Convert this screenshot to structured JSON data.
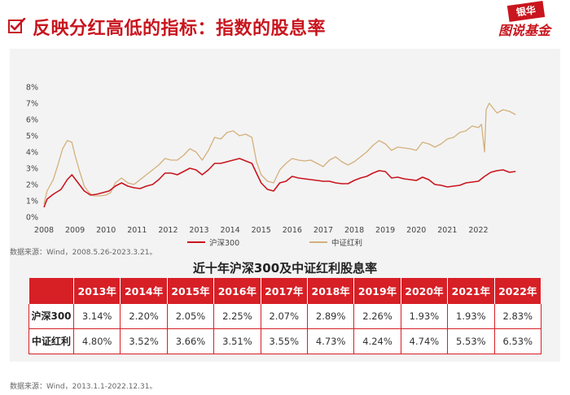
{
  "header": {
    "title": "反映分红高低的指标：指数的股息率",
    "logo_top": "银华",
    "logo_bottom": "图说基金"
  },
  "colors": {
    "red": "#c9151e",
    "tan": "#d4b07c",
    "table_header": "#d71f26"
  },
  "chart_data": {
    "type": "line",
    "x_ticks": [
      "2008",
      "2009",
      "2010",
      "2011",
      "2012",
      "2013",
      "2014",
      "2015",
      "2016",
      "2017",
      "2018",
      "2019",
      "2020",
      "2021",
      "2022"
    ],
    "y_ticks": [
      "0%",
      "1%",
      "2%",
      "3%",
      "4%",
      "5%",
      "6%",
      "7%",
      "8%"
    ],
    "ylim": [
      0,
      8
    ],
    "xlim": [
      2008.0,
      2023.3
    ],
    "grid": false,
    "legend_position": "bottom",
    "series": [
      {
        "name": "沪深300",
        "color": "#c9151e",
        "points": [
          [
            2008.0,
            0.6
          ],
          [
            2008.1,
            1.1
          ],
          [
            2008.3,
            1.4
          ],
          [
            2008.55,
            1.7
          ],
          [
            2008.75,
            2.3
          ],
          [
            2008.9,
            2.6
          ],
          [
            2009.1,
            2.1
          ],
          [
            2009.3,
            1.6
          ],
          [
            2009.5,
            1.35
          ],
          [
            2009.7,
            1.4
          ],
          [
            2009.9,
            1.5
          ],
          [
            2010.1,
            1.6
          ],
          [
            2010.3,
            1.9
          ],
          [
            2010.5,
            2.1
          ],
          [
            2010.7,
            1.9
          ],
          [
            2010.9,
            1.8
          ],
          [
            2011.1,
            1.75
          ],
          [
            2011.3,
            1.9
          ],
          [
            2011.5,
            2.0
          ],
          [
            2011.7,
            2.3
          ],
          [
            2011.9,
            2.7
          ],
          [
            2012.1,
            2.7
          ],
          [
            2012.3,
            2.6
          ],
          [
            2012.5,
            2.8
          ],
          [
            2012.7,
            3.0
          ],
          [
            2012.9,
            2.9
          ],
          [
            2013.1,
            2.6
          ],
          [
            2013.3,
            2.9
          ],
          [
            2013.5,
            3.3
          ],
          [
            2013.7,
            3.3
          ],
          [
            2013.9,
            3.4
          ],
          [
            2014.1,
            3.5
          ],
          [
            2014.3,
            3.6
          ],
          [
            2014.5,
            3.45
          ],
          [
            2014.7,
            3.3
          ],
          [
            2014.85,
            2.7
          ],
          [
            2015.0,
            2.1
          ],
          [
            2015.2,
            1.7
          ],
          [
            2015.4,
            1.6
          ],
          [
            2015.6,
            2.1
          ],
          [
            2015.8,
            2.2
          ],
          [
            2016.0,
            2.5
          ],
          [
            2016.2,
            2.4
          ],
          [
            2016.4,
            2.35
          ],
          [
            2016.6,
            2.3
          ],
          [
            2016.8,
            2.25
          ],
          [
            2017.0,
            2.2
          ],
          [
            2017.2,
            2.2
          ],
          [
            2017.4,
            2.1
          ],
          [
            2017.6,
            2.05
          ],
          [
            2017.8,
            2.05
          ],
          [
            2018.0,
            2.25
          ],
          [
            2018.2,
            2.4
          ],
          [
            2018.4,
            2.5
          ],
          [
            2018.6,
            2.7
          ],
          [
            2018.8,
            2.85
          ],
          [
            2019.0,
            2.8
          ],
          [
            2019.2,
            2.4
          ],
          [
            2019.4,
            2.45
          ],
          [
            2019.6,
            2.35
          ],
          [
            2019.8,
            2.3
          ],
          [
            2020.0,
            2.25
          ],
          [
            2020.2,
            2.45
          ],
          [
            2020.4,
            2.3
          ],
          [
            2020.6,
            2.0
          ],
          [
            2020.8,
            1.95
          ],
          [
            2021.0,
            1.85
          ],
          [
            2021.2,
            1.9
          ],
          [
            2021.4,
            1.95
          ],
          [
            2021.6,
            2.1
          ],
          [
            2021.8,
            2.15
          ],
          [
            2022.0,
            2.2
          ],
          [
            2022.2,
            2.5
          ],
          [
            2022.4,
            2.75
          ],
          [
            2022.6,
            2.85
          ],
          [
            2022.8,
            2.9
          ],
          [
            2023.0,
            2.75
          ],
          [
            2023.2,
            2.8
          ]
        ]
      },
      {
        "name": "中证红利",
        "color": "#d4b07c",
        "points": [
          [
            2008.0,
            0.8
          ],
          [
            2008.1,
            1.6
          ],
          [
            2008.3,
            2.3
          ],
          [
            2008.45,
            3.2
          ],
          [
            2008.6,
            4.2
          ],
          [
            2008.75,
            4.7
          ],
          [
            2008.9,
            4.6
          ],
          [
            2009.0,
            3.8
          ],
          [
            2009.15,
            2.8
          ],
          [
            2009.3,
            1.9
          ],
          [
            2009.45,
            1.5
          ],
          [
            2009.6,
            1.3
          ],
          [
            2009.8,
            1.3
          ],
          [
            2010.0,
            1.35
          ],
          [
            2010.15,
            1.5
          ],
          [
            2010.3,
            2.1
          ],
          [
            2010.5,
            2.4
          ],
          [
            2010.7,
            2.1
          ],
          [
            2010.9,
            2.0
          ],
          [
            2011.1,
            2.3
          ],
          [
            2011.3,
            2.6
          ],
          [
            2011.5,
            2.9
          ],
          [
            2011.7,
            3.2
          ],
          [
            2011.9,
            3.6
          ],
          [
            2012.1,
            3.5
          ],
          [
            2012.3,
            3.5
          ],
          [
            2012.5,
            3.8
          ],
          [
            2012.7,
            4.2
          ],
          [
            2012.9,
            4.0
          ],
          [
            2013.1,
            3.5
          ],
          [
            2013.3,
            4.1
          ],
          [
            2013.5,
            4.9
          ],
          [
            2013.7,
            4.8
          ],
          [
            2013.9,
            5.2
          ],
          [
            2014.1,
            5.3
          ],
          [
            2014.3,
            5.0
          ],
          [
            2014.5,
            5.1
          ],
          [
            2014.7,
            4.9
          ],
          [
            2014.85,
            3.4
          ],
          [
            2015.0,
            2.6
          ],
          [
            2015.2,
            2.2
          ],
          [
            2015.4,
            2.1
          ],
          [
            2015.6,
            2.9
          ],
          [
            2015.8,
            3.3
          ],
          [
            2016.0,
            3.6
          ],
          [
            2016.2,
            3.5
          ],
          [
            2016.4,
            3.45
          ],
          [
            2016.6,
            3.5
          ],
          [
            2016.8,
            3.3
          ],
          [
            2017.0,
            3.1
          ],
          [
            2017.2,
            3.5
          ],
          [
            2017.4,
            3.7
          ],
          [
            2017.6,
            3.4
          ],
          [
            2017.8,
            3.2
          ],
          [
            2018.0,
            3.4
          ],
          [
            2018.2,
            3.7
          ],
          [
            2018.4,
            4.0
          ],
          [
            2018.6,
            4.4
          ],
          [
            2018.8,
            4.7
          ],
          [
            2019.0,
            4.5
          ],
          [
            2019.2,
            4.1
          ],
          [
            2019.4,
            4.3
          ],
          [
            2019.6,
            4.25
          ],
          [
            2019.8,
            4.2
          ],
          [
            2020.0,
            4.1
          ],
          [
            2020.2,
            4.6
          ],
          [
            2020.4,
            4.5
          ],
          [
            2020.6,
            4.3
          ],
          [
            2020.8,
            4.5
          ],
          [
            2021.0,
            4.8
          ],
          [
            2021.2,
            4.9
          ],
          [
            2021.4,
            5.2
          ],
          [
            2021.6,
            5.3
          ],
          [
            2021.8,
            5.6
          ],
          [
            2022.0,
            5.5
          ],
          [
            2022.1,
            5.7
          ],
          [
            2022.2,
            4.0
          ],
          [
            2022.25,
            6.6
          ],
          [
            2022.35,
            7.0
          ],
          [
            2022.6,
            6.4
          ],
          [
            2022.8,
            6.6
          ],
          [
            2023.0,
            6.5
          ],
          [
            2023.2,
            6.3
          ]
        ]
      }
    ]
  },
  "source_chart": "数据来源：Wind，2008.5.26-2023.3.21。",
  "table": {
    "title": "近十年沪深300及中证红利股息率",
    "years": [
      "2013年",
      "2014年",
      "2015年",
      "2016年",
      "2017年",
      "2018年",
      "2019年",
      "2020年",
      "2021年",
      "2022年"
    ],
    "rows": [
      {
        "name": "沪深300",
        "values": [
          "3.14%",
          "2.20%",
          "2.05%",
          "2.25%",
          "2.07%",
          "2.89%",
          "2.26%",
          "1.93%",
          "1.93%",
          "2.83%"
        ]
      },
      {
        "name": "中证红利",
        "values": [
          "4.80%",
          "3.52%",
          "3.66%",
          "3.51%",
          "3.55%",
          "4.73%",
          "4.24%",
          "4.74%",
          "5.53%",
          "6.53%"
        ]
      }
    ]
  },
  "source_table": "数据来源：Wind，2013.1.1-2022.12.31。"
}
